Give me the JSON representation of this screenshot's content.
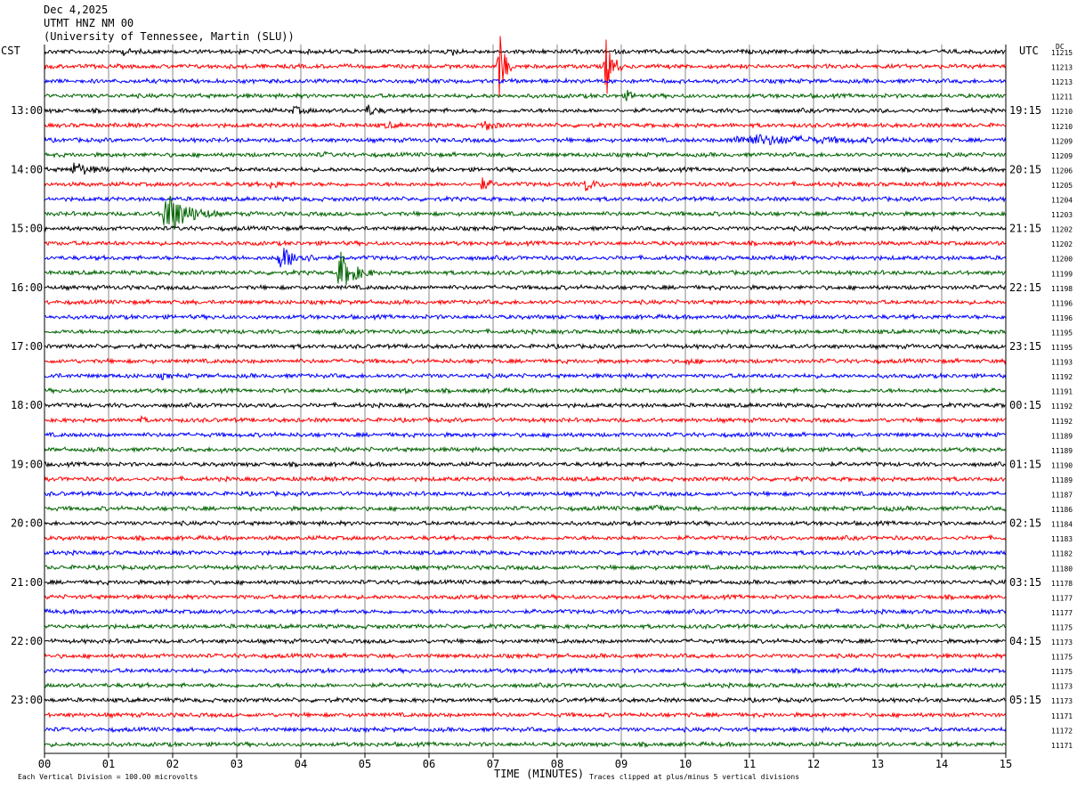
{
  "header": {
    "date": "Dec 4,2025",
    "station": "UTMT HNZ NM 00",
    "network": "(University of Tennessee, Martin (SLU))"
  },
  "axes": {
    "left_zone": "CST",
    "right_zone": "UTC",
    "dc_label": "DC",
    "xlabel": "TIME (MINUTES)"
  },
  "footer": {
    "scale_note": "Each Vertical Division =  100.00 microvolts",
    "clip_note": "Traces clipped at plus/minus 5 vertical divisions"
  },
  "chart_data": {
    "type": "line",
    "title": "UTMT HNZ NM 00",
    "xlabel": "TIME (MINUTES)",
    "xlim": [
      0,
      15
    ],
    "x_ticks": [
      "00",
      "01",
      "02",
      "03",
      "04",
      "05",
      "06",
      "07",
      "08",
      "09",
      "10",
      "11",
      "12",
      "13",
      "14",
      "15"
    ],
    "minutes_per_trace": 15,
    "trace_count": 48,
    "trace_colors": [
      "#000000",
      "#ff0000",
      "#0000ff",
      "#006400"
    ],
    "left_hour_labels": [
      {
        "trace": 4,
        "label": "13:00"
      },
      {
        "trace": 8,
        "label": "14:00"
      },
      {
        "trace": 12,
        "label": "15:00"
      },
      {
        "trace": 16,
        "label": "16:00"
      },
      {
        "trace": 20,
        "label": "17:00"
      },
      {
        "trace": 24,
        "label": "18:00"
      },
      {
        "trace": 28,
        "label": "19:00"
      },
      {
        "trace": 32,
        "label": "20:00"
      },
      {
        "trace": 36,
        "label": "21:00"
      },
      {
        "trace": 40,
        "label": "22:00"
      },
      {
        "trace": 44,
        "label": "23:00"
      }
    ],
    "right_hour_labels": [
      {
        "trace": 4,
        "label": "19:15"
      },
      {
        "trace": 8,
        "label": "20:15"
      },
      {
        "trace": 12,
        "label": "21:15"
      },
      {
        "trace": 16,
        "label": "22:15"
      },
      {
        "trace": 20,
        "label": "23:15"
      },
      {
        "trace": 24,
        "label": "00:15"
      },
      {
        "trace": 28,
        "label": "01:15"
      },
      {
        "trace": 32,
        "label": "02:15"
      },
      {
        "trace": 36,
        "label": "03:15"
      },
      {
        "trace": 40,
        "label": "04:15"
      },
      {
        "trace": 44,
        "label": "05:15"
      }
    ],
    "dc_values": [
      "11215",
      "11213",
      "11213",
      "11211",
      "11210",
      "11210",
      "11209",
      "11209",
      "11206",
      "11205",
      "11204",
      "11203",
      "11202",
      "11202",
      "11200",
      "11199",
      "11198",
      "11196",
      "11196",
      "11195",
      "11195",
      "11193",
      "11192",
      "11191",
      "11192",
      "11192",
      "11189",
      "11189",
      "11190",
      "11189",
      "11187",
      "11186",
      "11184",
      "11183",
      "11182",
      "11180",
      "11178",
      "11177",
      "11177",
      "11175",
      "11173",
      "11175",
      "11175",
      "11173",
      "11173",
      "11171",
      "11172",
      "11171"
    ],
    "noise_level": 2,
    "events": [
      {
        "trace": 1,
        "minute": 7.05,
        "duration": 0.25,
        "amplitude": 48
      },
      {
        "trace": 1,
        "minute": 8.72,
        "duration": 0.3,
        "amplitude": 36
      },
      {
        "trace": 0,
        "minute": 1.2,
        "duration": 0.3,
        "amplitude": 3
      },
      {
        "trace": 0,
        "minute": 6.35,
        "duration": 0.2,
        "amplitude": 3
      },
      {
        "trace": 3,
        "minute": 9.05,
        "duration": 0.3,
        "amplitude": 5
      },
      {
        "trace": 4,
        "minute": 3.85,
        "duration": 0.4,
        "amplitude": 4
      },
      {
        "trace": 4,
        "minute": 5.0,
        "duration": 0.35,
        "amplitude": 6
      },
      {
        "trace": 5,
        "minute": 5.3,
        "duration": 0.3,
        "amplitude": 3
      },
      {
        "trace": 5,
        "minute": 6.8,
        "duration": 0.4,
        "amplitude": 6
      },
      {
        "trace": 6,
        "minute": 10.6,
        "duration": 3.4,
        "amplitude": 5
      },
      {
        "trace": 7,
        "minute": 4.3,
        "duration": 0.2,
        "amplitude": 3
      },
      {
        "trace": 8,
        "minute": 0.4,
        "duration": 0.6,
        "amplitude": 8
      },
      {
        "trace": 9,
        "minute": 3.5,
        "duration": 0.3,
        "amplitude": 4
      },
      {
        "trace": 9,
        "minute": 6.8,
        "duration": 0.3,
        "amplitude": 7
      },
      {
        "trace": 9,
        "minute": 8.4,
        "duration": 0.4,
        "amplitude": 7
      },
      {
        "trace": 11,
        "minute": 1.8,
        "duration": 0.9,
        "amplitude": 26
      },
      {
        "trace": 14,
        "minute": 3.6,
        "duration": 0.8,
        "amplitude": 12
      },
      {
        "trace": 15,
        "minute": 4.55,
        "duration": 0.6,
        "amplitude": 22
      },
      {
        "trace": 21,
        "minute": 10.0,
        "duration": 0.3,
        "amplitude": 3
      },
      {
        "trace": 22,
        "minute": 0.05,
        "duration": 0.2,
        "amplitude": 4
      },
      {
        "trace": 22,
        "minute": 1.8,
        "duration": 0.2,
        "amplitude": 3
      },
      {
        "trace": 23,
        "minute": 5.6,
        "duration": 0.1,
        "amplitude": 4
      },
      {
        "trace": 25,
        "minute": 1.5,
        "duration": 0.1,
        "amplitude": 5
      },
      {
        "trace": 31,
        "minute": 9.5,
        "duration": 0.3,
        "amplitude": 5
      },
      {
        "trace": 31,
        "minute": 13.1,
        "duration": 0.3,
        "amplitude": 2
      }
    ]
  }
}
